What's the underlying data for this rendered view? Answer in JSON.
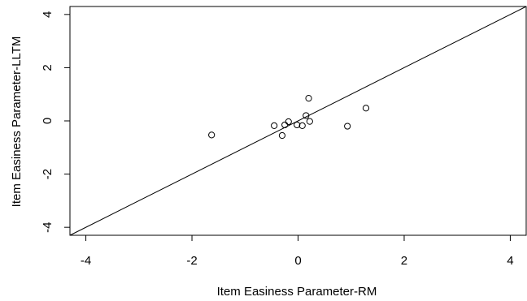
{
  "chart_data": {
    "type": "scatter",
    "title": "",
    "xlabel": "Item Easiness Parameter-RM",
    "ylabel": "Item Easiness Parameter-LLTM",
    "xlim": [
      -4.3,
      4.3
    ],
    "ylim": [
      -4.3,
      4.3
    ],
    "xticks": [
      -4,
      -2,
      0,
      2,
      4
    ],
    "yticks": [
      -4,
      -2,
      0,
      2,
      4
    ],
    "xtick_labels": [
      "-4",
      "-2",
      "0",
      "2",
      "4"
    ],
    "ytick_labels": [
      "-4",
      "-2",
      "0",
      "2",
      "4"
    ],
    "grid": false,
    "reference_line": {
      "type": "identity",
      "slope": 1,
      "intercept": 0
    },
    "points": [
      {
        "x": -1.63,
        "y": -0.53
      },
      {
        "x": -0.45,
        "y": -0.18
      },
      {
        "x": -0.3,
        "y": -0.55
      },
      {
        "x": -0.25,
        "y": -0.15
      },
      {
        "x": -0.18,
        "y": -0.03
      },
      {
        "x": -0.02,
        "y": -0.15
      },
      {
        "x": 0.08,
        "y": -0.18
      },
      {
        "x": 0.15,
        "y": 0.2
      },
      {
        "x": 0.2,
        "y": 0.85
      },
      {
        "x": 0.22,
        "y": -0.02
      },
      {
        "x": 0.93,
        "y": -0.2
      },
      {
        "x": 1.28,
        "y": 0.48
      }
    ]
  }
}
